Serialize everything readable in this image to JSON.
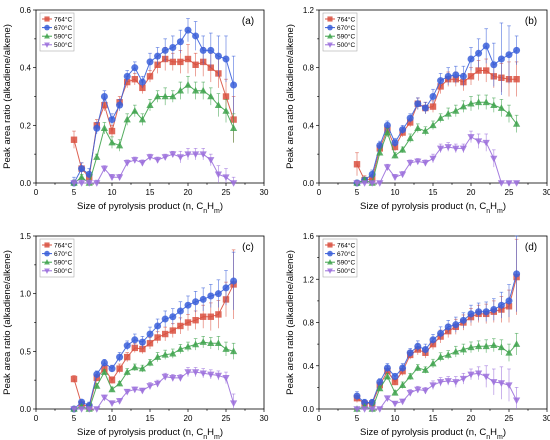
{
  "chart_data": [
    {
      "type": "line",
      "panel_label": "(a)",
      "xlabel_main": "Size of pyrolysis product (n, C",
      "xlabel_sub1": "n",
      "xlabel_mid": "H",
      "xlabel_sub2": "m",
      "xlabel_end": ")",
      "ylabel": "Peak area ratio (alkadiene/alkene)",
      "xlim": [
        0,
        30
      ],
      "ylim": [
        0,
        0.6
      ],
      "xticks": [
        "0",
        "5",
        "10",
        "15",
        "20",
        "25",
        "30"
      ],
      "yticks": [
        "0.0",
        "0.2",
        "0.4",
        "0.6"
      ],
      "legend_position": "top-left",
      "x": [
        5,
        6,
        7,
        8,
        9,
        10,
        11,
        12,
        13,
        14,
        15,
        16,
        17,
        18,
        19,
        20,
        21,
        22,
        23,
        24,
        25,
        26
      ],
      "series": [
        {
          "name": "764°C",
          "marker": "square",
          "color": "#d9503f",
          "values": [
            0.15,
            0.05,
            0.02,
            0.2,
            0.27,
            0.18,
            0.28,
            0.35,
            0.36,
            0.33,
            0.37,
            0.41,
            0.43,
            0.42,
            0.42,
            0.43,
            0.41,
            0.42,
            0.4,
            0.38,
            0.3,
            0.22
          ],
          "errors": [
            0.03,
            0.02,
            0.02,
            0.02,
            0.02,
            0.02,
            0.02,
            0.02,
            0.02,
            0.02,
            0.02,
            0.03,
            0.04,
            0.03,
            0.04,
            0.05,
            0.04,
            0.05,
            0.05,
            0.05,
            0.06,
            0.08
          ]
        },
        {
          "name": "670°C",
          "marker": "circle",
          "color": "#3a5fd9",
          "values": [
            0.0,
            0.05,
            0.03,
            0.19,
            0.3,
            0.22,
            0.27,
            0.37,
            0.4,
            0.35,
            0.42,
            0.44,
            0.46,
            0.47,
            0.49,
            0.53,
            0.51,
            0.46,
            0.46,
            0.44,
            0.43,
            0.34
          ],
          "errors": [
            0.02,
            0.02,
            0.02,
            0.02,
            0.02,
            0.02,
            0.02,
            0.02,
            0.02,
            0.02,
            0.03,
            0.03,
            0.04,
            0.04,
            0.04,
            0.04,
            0.05,
            0.05,
            0.06,
            0.07,
            0.08,
            0.1
          ]
        },
        {
          "name": "590°C",
          "marker": "triangle-up",
          "color": "#3fa34d",
          "values": [
            0.0,
            0.02,
            0.0,
            0.09,
            0.19,
            0.14,
            0.13,
            0.22,
            0.25,
            0.22,
            0.27,
            0.3,
            0.3,
            0.3,
            0.32,
            0.34,
            0.32,
            0.32,
            0.3,
            0.27,
            0.25,
            0.19
          ],
          "errors": [
            0.01,
            0.01,
            0.01,
            0.01,
            0.02,
            0.02,
            0.02,
            0.02,
            0.02,
            0.02,
            0.02,
            0.02,
            0.03,
            0.02,
            0.03,
            0.03,
            0.03,
            0.03,
            0.03,
            0.04,
            0.04,
            0.05
          ]
        },
        {
          "name": "500°C",
          "marker": "triangle-down",
          "color": "#9b6fdc",
          "values": [
            0.0,
            0.0,
            0.0,
            0.0,
            0.05,
            0.02,
            0.02,
            0.07,
            0.08,
            0.07,
            0.09,
            0.08,
            0.09,
            0.1,
            0.09,
            0.1,
            0.1,
            0.1,
            0.08,
            0.03,
            0.02,
            0.0
          ],
          "errors": [
            0.01,
            0.01,
            0.01,
            0.01,
            0.01,
            0.01,
            0.01,
            0.01,
            0.01,
            0.01,
            0.01,
            0.01,
            0.01,
            0.01,
            0.02,
            0.02,
            0.02,
            0.02,
            0.02,
            0.03,
            0.03,
            0.02
          ]
        }
      ]
    },
    {
      "type": "line",
      "panel_label": "(b)",
      "xlabel_main": "Size of pyrolysis product (n, C",
      "xlabel_sub1": "n",
      "xlabel_mid": "H",
      "xlabel_sub2": "m",
      "xlabel_end": ")",
      "ylabel": "Peak area ratio (alkadiene/alkene)",
      "xlim": [
        0,
        30
      ],
      "ylim": [
        0,
        1.2
      ],
      "xticks": [
        "0",
        "5",
        "10",
        "15",
        "20",
        "25",
        "30"
      ],
      "yticks": [
        "0.0",
        "0.4",
        "0.8",
        "1.2"
      ],
      "legend_position": "top-left",
      "x": [
        5,
        6,
        7,
        8,
        9,
        10,
        11,
        12,
        13,
        14,
        15,
        16,
        17,
        18,
        19,
        20,
        21,
        22,
        23,
        24,
        25,
        26
      ],
      "series": [
        {
          "name": "764°C",
          "marker": "square",
          "color": "#d9503f",
          "values": [
            0.13,
            0.02,
            0.03,
            0.24,
            0.37,
            0.25,
            0.35,
            0.42,
            0.55,
            0.52,
            0.53,
            0.67,
            0.72,
            0.72,
            0.7,
            0.74,
            0.78,
            0.78,
            0.74,
            0.73,
            0.72,
            0.72
          ],
          "errors": [
            0.08,
            0.03,
            0.03,
            0.03,
            0.03,
            0.03,
            0.03,
            0.03,
            0.04,
            0.04,
            0.04,
            0.05,
            0.05,
            0.05,
            0.06,
            0.06,
            0.07,
            0.08,
            0.08,
            0.1,
            0.12,
            0.12
          ]
        },
        {
          "name": "670°C",
          "marker": "circle",
          "color": "#3a5fd9",
          "values": [
            0.0,
            0.02,
            0.06,
            0.26,
            0.4,
            0.28,
            0.37,
            0.45,
            0.55,
            0.52,
            0.6,
            0.71,
            0.74,
            0.75,
            0.74,
            0.86,
            0.9,
            0.95,
            0.82,
            0.86,
            0.89,
            0.92
          ],
          "errors": [
            0.02,
            0.02,
            0.03,
            0.03,
            0.03,
            0.03,
            0.03,
            0.03,
            0.04,
            0.04,
            0.05,
            0.05,
            0.06,
            0.06,
            0.07,
            0.08,
            0.1,
            0.12,
            0.15,
            0.25,
            0.2,
            0.1
          ]
        },
        {
          "name": "590°C",
          "marker": "triangle-up",
          "color": "#3fa34d",
          "values": [
            0.0,
            0.02,
            0.0,
            0.21,
            0.35,
            0.19,
            0.23,
            0.31,
            0.38,
            0.36,
            0.4,
            0.45,
            0.48,
            0.5,
            0.53,
            0.55,
            0.56,
            0.56,
            0.54,
            0.52,
            0.48,
            0.41
          ],
          "errors": [
            0.01,
            0.02,
            0.02,
            0.02,
            0.03,
            0.02,
            0.02,
            0.03,
            0.03,
            0.03,
            0.03,
            0.03,
            0.04,
            0.04,
            0.04,
            0.05,
            0.05,
            0.05,
            0.05,
            0.06,
            0.06,
            0.06
          ]
        },
        {
          "name": "500°C",
          "marker": "triangle-down",
          "color": "#9b6fdc",
          "values": [
            0.0,
            0.0,
            0.0,
            0.0,
            0.11,
            0.04,
            0.06,
            0.14,
            0.15,
            0.14,
            0.17,
            0.24,
            0.25,
            0.24,
            0.24,
            0.32,
            0.29,
            0.28,
            0.17,
            0.0,
            0.0,
            0.0
          ],
          "errors": [
            0.01,
            0.01,
            0.01,
            0.01,
            0.02,
            0.02,
            0.02,
            0.02,
            0.02,
            0.02,
            0.03,
            0.03,
            0.03,
            0.03,
            0.03,
            0.04,
            0.05,
            0.06,
            0.06,
            0.01,
            0.01,
            0.01
          ]
        }
      ]
    },
    {
      "type": "line",
      "panel_label": "(c)",
      "xlabel_main": "Size of pyrolysis product (n, C",
      "xlabel_sub1": "n",
      "xlabel_mid": "H",
      "xlabel_sub2": "m",
      "xlabel_end": ")",
      "ylabel": "Peak area ratio (alkadiene/alkene)",
      "xlim": [
        0,
        30
      ],
      "ylim": [
        0,
        1.5
      ],
      "xticks": [
        "0",
        "5",
        "10",
        "15",
        "20",
        "25",
        "30"
      ],
      "yticks": [
        "0.0",
        "0.5",
        "1.0",
        "1.5"
      ],
      "legend_position": "top-left",
      "x": [
        5,
        6,
        7,
        8,
        9,
        10,
        11,
        12,
        13,
        14,
        15,
        16,
        17,
        18,
        19,
        20,
        21,
        22,
        23,
        24,
        25,
        26
      ],
      "series": [
        {
          "name": "764°C",
          "marker": "square",
          "color": "#d9503f",
          "values": [
            0.26,
            0.04,
            0.02,
            0.27,
            0.35,
            0.25,
            0.35,
            0.45,
            0.53,
            0.52,
            0.57,
            0.62,
            0.65,
            0.68,
            0.72,
            0.75,
            0.77,
            0.8,
            0.8,
            0.82,
            0.95,
            1.08
          ],
          "errors": [
            0.03,
            0.03,
            0.03,
            0.03,
            0.03,
            0.03,
            0.04,
            0.04,
            0.04,
            0.04,
            0.05,
            0.05,
            0.06,
            0.06,
            0.07,
            0.07,
            0.08,
            0.1,
            0.12,
            0.12,
            0.15,
            0.3
          ]
        },
        {
          "name": "670°C",
          "marker": "circle",
          "color": "#3a5fd9",
          "values": [
            0.0,
            0.06,
            0.03,
            0.3,
            0.4,
            0.35,
            0.45,
            0.55,
            0.6,
            0.58,
            0.65,
            0.72,
            0.78,
            0.8,
            0.85,
            0.9,
            0.93,
            0.95,
            0.98,
            1.0,
            1.05,
            1.11
          ],
          "errors": [
            0.02,
            0.02,
            0.03,
            0.03,
            0.03,
            0.03,
            0.04,
            0.04,
            0.05,
            0.05,
            0.06,
            0.06,
            0.07,
            0.07,
            0.08,
            0.08,
            0.09,
            0.1,
            0.1,
            0.12,
            0.15,
            0.25
          ]
        },
        {
          "name": "590°C",
          "marker": "triangle-up",
          "color": "#3fa34d",
          "values": [
            0.0,
            0.02,
            0.0,
            0.2,
            0.32,
            0.17,
            0.22,
            0.32,
            0.36,
            0.35,
            0.4,
            0.45,
            0.47,
            0.48,
            0.52,
            0.54,
            0.56,
            0.58,
            0.57,
            0.57,
            0.52,
            0.5
          ],
          "errors": [
            0.01,
            0.01,
            0.01,
            0.02,
            0.02,
            0.02,
            0.02,
            0.03,
            0.03,
            0.03,
            0.03,
            0.04,
            0.04,
            0.04,
            0.04,
            0.04,
            0.05,
            0.05,
            0.05,
            0.06,
            0.06,
            0.07
          ]
        },
        {
          "name": "500°C",
          "marker": "triangle-down",
          "color": "#9b6fdc",
          "values": [
            0.0,
            0.0,
            0.0,
            0.0,
            0.1,
            0.05,
            0.07,
            0.15,
            0.17,
            0.16,
            0.2,
            0.22,
            0.28,
            0.27,
            0.27,
            0.32,
            0.32,
            0.31,
            0.3,
            0.29,
            0.27,
            0.05
          ],
          "errors": [
            0.01,
            0.01,
            0.01,
            0.01,
            0.02,
            0.02,
            0.02,
            0.02,
            0.02,
            0.02,
            0.03,
            0.03,
            0.03,
            0.03,
            0.03,
            0.04,
            0.04,
            0.04,
            0.04,
            0.04,
            0.05,
            0.08
          ]
        }
      ]
    },
    {
      "type": "line",
      "panel_label": "(d)",
      "xlabel_main": "Size of pyrolysis product (n, C",
      "xlabel_sub1": "n",
      "xlabel_mid": "H",
      "xlabel_sub2": "m",
      "xlabel_end": ")",
      "ylabel": "Peak area ratio (alkadiene/alkene)",
      "xlim": [
        0,
        30
      ],
      "ylim": [
        0,
        1.6
      ],
      "xticks": [
        "0",
        "5",
        "10",
        "15",
        "20",
        "25",
        "30"
      ],
      "yticks": [
        "0.0",
        "0.4",
        "0.8",
        "1.2",
        "1.6"
      ],
      "legend_position": "top-left",
      "x": [
        5,
        6,
        7,
        8,
        9,
        10,
        11,
        12,
        13,
        14,
        15,
        16,
        17,
        18,
        19,
        20,
        21,
        22,
        23,
        24,
        25,
        26
      ],
      "series": [
        {
          "name": "764°C",
          "marker": "square",
          "color": "#d9503f",
          "values": [
            0.1,
            0.05,
            0.05,
            0.22,
            0.35,
            0.25,
            0.35,
            0.5,
            0.55,
            0.52,
            0.6,
            0.67,
            0.72,
            0.76,
            0.8,
            0.85,
            0.88,
            0.88,
            0.9,
            0.92,
            0.95,
            1.22
          ],
          "errors": [
            0.04,
            0.03,
            0.03,
            0.03,
            0.04,
            0.03,
            0.04,
            0.04,
            0.05,
            0.05,
            0.05,
            0.06,
            0.06,
            0.07,
            0.07,
            0.08,
            0.08,
            0.09,
            0.1,
            0.12,
            0.15,
            0.35
          ]
        },
        {
          "name": "670°C",
          "marker": "circle",
          "color": "#3a5fd9",
          "values": [
            0.12,
            0.06,
            0.06,
            0.25,
            0.38,
            0.3,
            0.38,
            0.52,
            0.58,
            0.55,
            0.64,
            0.7,
            0.76,
            0.78,
            0.82,
            0.88,
            0.9,
            0.9,
            0.92,
            0.96,
            1.0,
            1.25
          ],
          "errors": [
            0.04,
            0.03,
            0.03,
            0.03,
            0.04,
            0.03,
            0.04,
            0.04,
            0.05,
            0.05,
            0.05,
            0.06,
            0.06,
            0.07,
            0.07,
            0.08,
            0.08,
            0.09,
            0.1,
            0.12,
            0.15,
            0.35
          ]
        },
        {
          "name": "590°C",
          "marker": "triangle-up",
          "color": "#3fa34d",
          "values": [
            0.0,
            0.02,
            0.0,
            0.19,
            0.3,
            0.15,
            0.22,
            0.3,
            0.38,
            0.36,
            0.42,
            0.48,
            0.5,
            0.53,
            0.55,
            0.57,
            0.58,
            0.58,
            0.59,
            0.57,
            0.52,
            0.6
          ],
          "errors": [
            0.01,
            0.01,
            0.01,
            0.02,
            0.03,
            0.02,
            0.03,
            0.03,
            0.03,
            0.03,
            0.04,
            0.04,
            0.04,
            0.05,
            0.05,
            0.05,
            0.05,
            0.06,
            0.06,
            0.07,
            0.08,
            0.1
          ]
        },
        {
          "name": "500°C",
          "marker": "triangle-down",
          "color": "#9b6fdc",
          "values": [
            0.0,
            0.0,
            0.0,
            0.0,
            0.1,
            0.05,
            0.07,
            0.15,
            0.18,
            0.17,
            0.22,
            0.25,
            0.26,
            0.25,
            0.28,
            0.32,
            0.33,
            0.3,
            0.25,
            0.24,
            0.22,
            0.08
          ],
          "errors": [
            0.01,
            0.01,
            0.01,
            0.01,
            0.02,
            0.02,
            0.02,
            0.03,
            0.03,
            0.03,
            0.04,
            0.04,
            0.04,
            0.05,
            0.05,
            0.05,
            0.06,
            0.1,
            0.12,
            0.15,
            0.15,
            0.12
          ]
        }
      ]
    }
  ]
}
